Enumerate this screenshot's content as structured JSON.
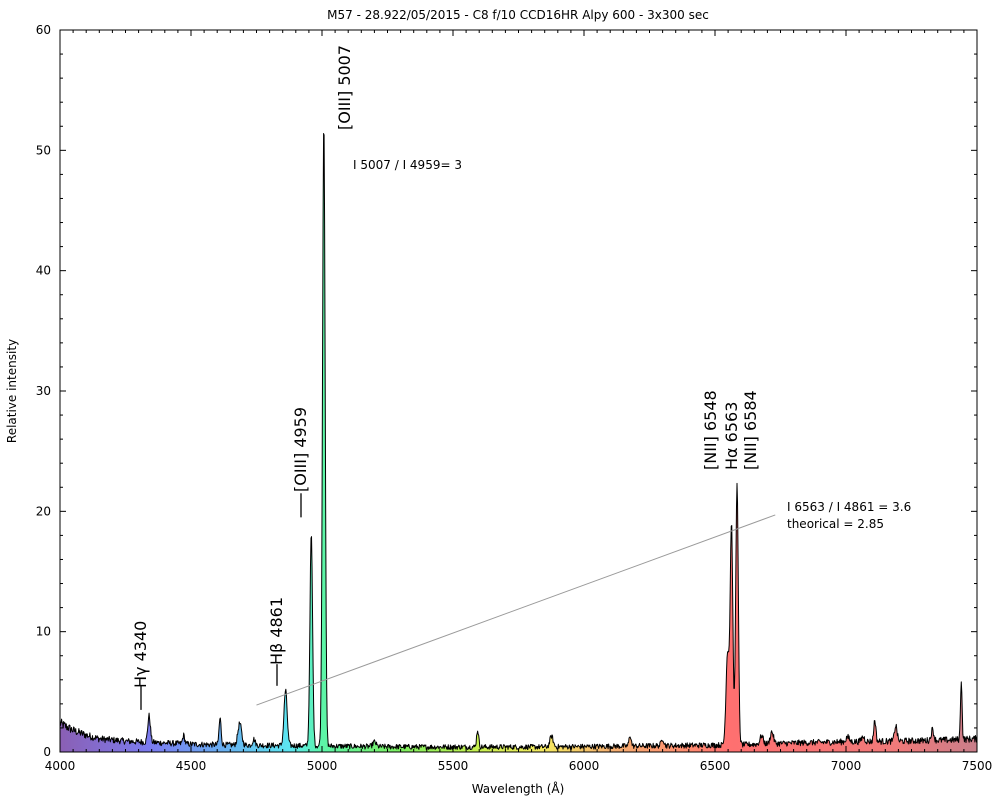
{
  "chart_data": {
    "type": "area",
    "title": "M57 - 28.922/05/2015 - C8 f/10 CCD16HR Alpy 600 - 3x300 sec",
    "xlabel": "Wavelength (Å)",
    "ylabel": "Relative intensity",
    "xlim": [
      4000,
      7500
    ],
    "ylim": [
      0,
      60
    ],
    "xticks": [
      4000,
      4500,
      5000,
      5500,
      6000,
      6500,
      7000,
      7500
    ],
    "yticks": [
      0,
      10,
      20,
      30,
      40,
      50,
      60
    ],
    "grid": false,
    "baseline": [
      [
        4000,
        2.4
      ],
      [
        4050,
        1.8
      ],
      [
        4100,
        1.4
      ],
      [
        4150,
        1.1
      ],
      [
        4200,
        1.0
      ],
      [
        4250,
        0.9
      ],
      [
        4300,
        0.85
      ],
      [
        4400,
        0.75
      ],
      [
        4500,
        0.65
      ],
      [
        4600,
        0.6
      ],
      [
        4800,
        0.55
      ],
      [
        5000,
        0.5
      ],
      [
        5200,
        0.45
      ],
      [
        5400,
        0.42
      ],
      [
        5600,
        0.42
      ],
      [
        5800,
        0.42
      ],
      [
        6000,
        0.45
      ],
      [
        6200,
        0.5
      ],
      [
        6400,
        0.55
      ],
      [
        6600,
        0.6
      ],
      [
        6800,
        0.75
      ],
      [
        7000,
        0.85
      ],
      [
        7200,
        0.9
      ],
      [
        7400,
        1.0
      ],
      [
        7500,
        1.1
      ]
    ],
    "emission_lines": [
      {
        "wavelength": 4340,
        "peak": 2.2,
        "width": 5
      },
      {
        "wavelength": 4472,
        "peak": 0.7,
        "width": 4
      },
      {
        "wavelength": 4611,
        "peak": 2.2,
        "width": 4
      },
      {
        "wavelength": 4686,
        "peak": 1.8,
        "width": 7
      },
      {
        "wavelength": 4740,
        "peak": 0.5,
        "width": 5
      },
      {
        "wavelength": 4861,
        "peak": 4.6,
        "width": 6
      },
      {
        "wavelength": 4959,
        "peak": 17.6,
        "width": 5
      },
      {
        "wavelength": 5007,
        "peak": 52.0,
        "width": 5
      },
      {
        "wavelength": 5200,
        "peak": 0.4,
        "width": 6
      },
      {
        "wavelength": 5594,
        "peak": 1.4,
        "width": 4
      },
      {
        "wavelength": 5876,
        "peak": 0.9,
        "width": 6
      },
      {
        "wavelength": 6176,
        "peak": 0.9,
        "width": 4
      },
      {
        "wavelength": 6300,
        "peak": 0.6,
        "width": 5
      },
      {
        "wavelength": 6548,
        "peak": 7.7,
        "width": 6
      },
      {
        "wavelength": 6563,
        "peak": 18.2,
        "width": 5
      },
      {
        "wavelength": 6584,
        "peak": 21.6,
        "width": 5
      },
      {
        "wavelength": 6678,
        "peak": 0.7,
        "width": 6
      },
      {
        "wavelength": 6717,
        "peak": 1.0,
        "width": 6
      },
      {
        "wavelength": 7006,
        "peak": 0.4,
        "width": 6
      },
      {
        "wavelength": 7065,
        "peak": 0.4,
        "width": 6
      },
      {
        "wavelength": 7110,
        "peak": 1.8,
        "width": 4
      },
      {
        "wavelength": 7190,
        "peak": 1.3,
        "width": 5
      },
      {
        "wavelength": 7330,
        "peak": 0.9,
        "width": 5
      },
      {
        "wavelength": 7440,
        "peak": 5.0,
        "width": 3
      }
    ],
    "line_labels": [
      {
        "text": "Hγ 4340",
        "wavelength": 4340,
        "tick_from": 3.5,
        "tick_to": 5.5
      },
      {
        "text": "Hβ 4861",
        "wavelength": 4861,
        "tick_from": 5.5,
        "tick_to": 7.3
      },
      {
        "text": "[OIII] 4959",
        "wavelength": 4959,
        "tick_from": 19.5,
        "tick_to": 21.5
      },
      {
        "text": "[OIII] 5007",
        "wavelength": 5007,
        "tick_from": null,
        "tick_to": null
      },
      {
        "text": "[NII] 6548",
        "wavelength": 6548,
        "tick_from": null,
        "tick_to": null
      },
      {
        "text": "Hα 6563",
        "wavelength": 6563,
        "tick_from": null,
        "tick_to": null
      },
      {
        "text": "[NII] 6584",
        "wavelength": 6584,
        "tick_from": null,
        "tick_to": null
      }
    ],
    "annotations": [
      {
        "text": "I 5007 / I 4959= 3"
      },
      {
        "text": "I 6563 / I 4861 = 3.6"
      },
      {
        "text": "theorical = 2.85"
      }
    ],
    "continuum_line": {
      "from": [
        4750,
        3.9
      ],
      "to": [
        6730,
        19.7
      ]
    },
    "fill_gradient": [
      {
        "wavelength": 4000,
        "color": "#8a5fb4"
      },
      {
        "wavelength": 4350,
        "color": "#7b7cf0"
      },
      {
        "wavelength": 4600,
        "color": "#6aaaf0"
      },
      {
        "wavelength": 4880,
        "color": "#5ce6f0"
      },
      {
        "wavelength": 5000,
        "color": "#5cf5a8"
      },
      {
        "wavelength": 5300,
        "color": "#7ef060"
      },
      {
        "wavelength": 5600,
        "color": "#c8f050"
      },
      {
        "wavelength": 5850,
        "color": "#f5e860"
      },
      {
        "wavelength": 6100,
        "color": "#f5b070"
      },
      {
        "wavelength": 6400,
        "color": "#ff8c70"
      },
      {
        "wavelength": 6550,
        "color": "#ff7070"
      },
      {
        "wavelength": 7200,
        "color": "#f07a7a"
      },
      {
        "wavelength": 7500,
        "color": "#c87e8a"
      }
    ]
  }
}
